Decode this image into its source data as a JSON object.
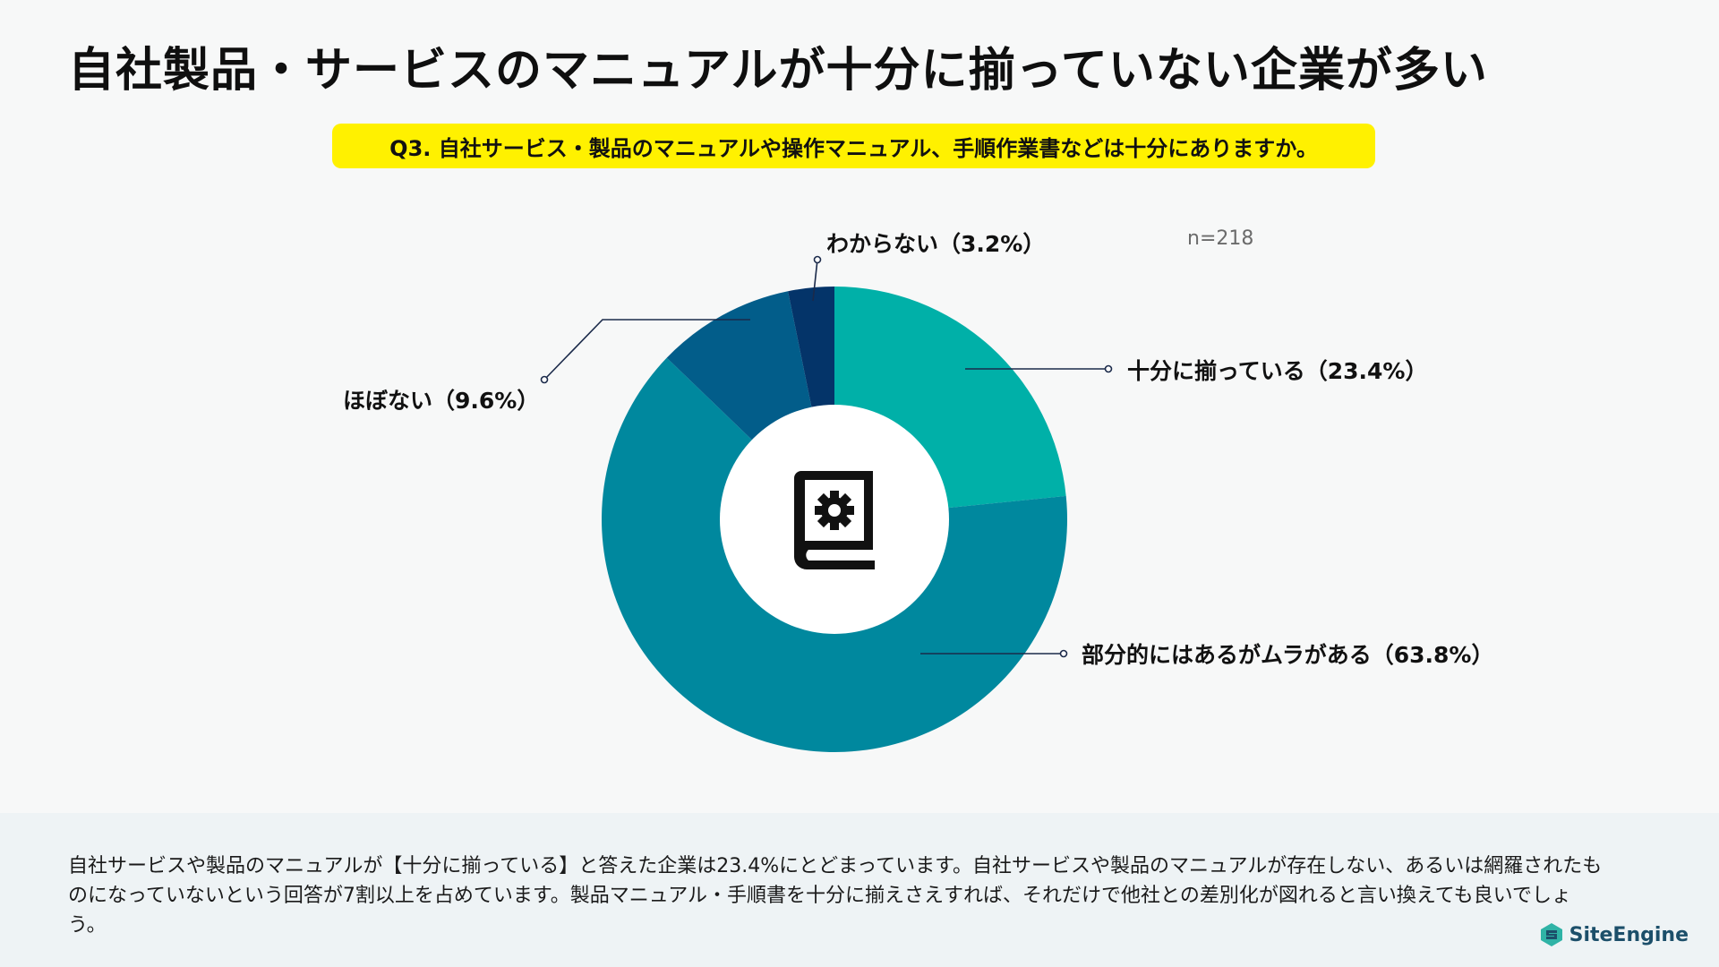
{
  "title": "自社製品・サービスのマニュアルが十分に揃っていない企業が多い",
  "question": "Q3. 自社サービス・製品のマニュアルや操作マニュアル、手順作業書などは十分にありますか。",
  "sample_size": "n=218",
  "center_icon": "manual-gear-book-icon",
  "colors": {
    "question_bg": "#fff100",
    "leader_line": "#1b2a4a"
  },
  "chart_data": {
    "type": "pie",
    "donut": true,
    "start_angle_deg": 0,
    "direction": "clockwise",
    "slices": [
      {
        "label": "十分に揃っている（23.4%）",
        "value": 23.4,
        "color": "#00b0a8"
      },
      {
        "label": "部分的にはあるがムラがある（63.8%）",
        "value": 63.8,
        "color": "#00889e"
      },
      {
        "label": "ほぼない（9.6%）",
        "value": 9.6,
        "color": "#025d8a"
      },
      {
        "label": "わからない（3.2%）",
        "value": 3.2,
        "color": "#043469"
      }
    ]
  },
  "footer": {
    "text": "自社サービスや製品のマニュアルが【十分に揃っている】と答えた企業は23.4%にとどまっています。自社サービスや製品のマニュアルが存在しない、あるいは網羅されたものになっていないという回答が7割以上を占めています。製品マニュアル・手順書を十分に揃えさえすれば、それだけで他社との差別化が図れると言い換えても良いでしょう。",
    "brand": "SiteEngine",
    "brand_icon": "siteengine-logo-icon"
  }
}
